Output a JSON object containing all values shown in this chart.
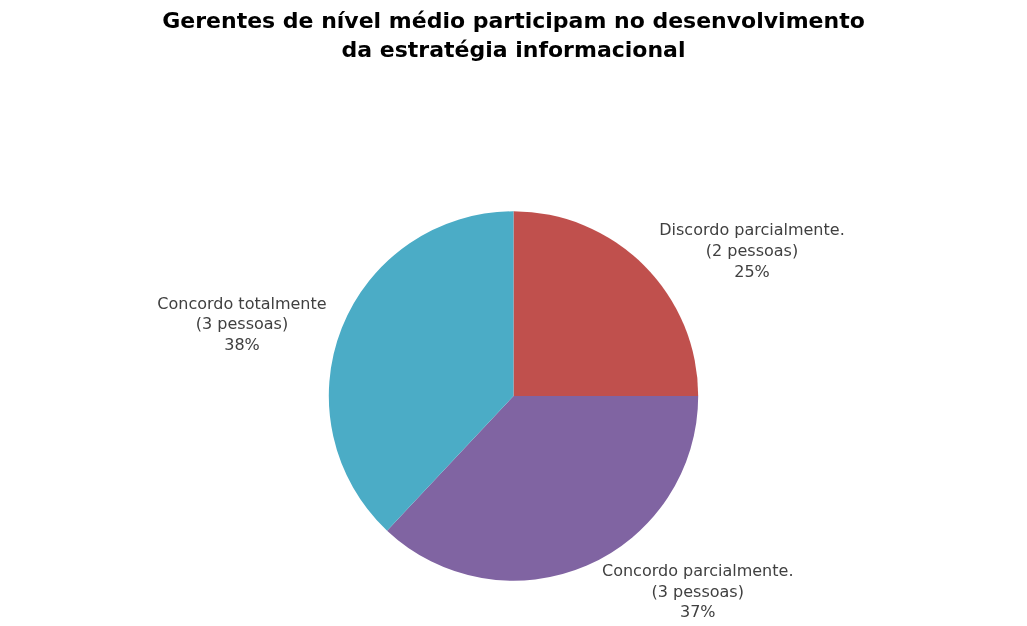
{
  "chart_data": {
    "type": "pie",
    "title": "Gerentes de nível médio participam no desenvolvimento da estratégia informacional",
    "categories": [
      "Discordo parcialmente.",
      "Concordo parcialmente.",
      "Concordo totalmente"
    ],
    "values": [
      25,
      37,
      38
    ],
    "colors": [
      "#c0504d",
      "#8064a2",
      "#4bacc6"
    ],
    "value_labels": [
      "(2 pessoas) 25%",
      "(3 pessoas) 37%",
      "(3 pessoas) 38%"
    ],
    "legend": false
  }
}
